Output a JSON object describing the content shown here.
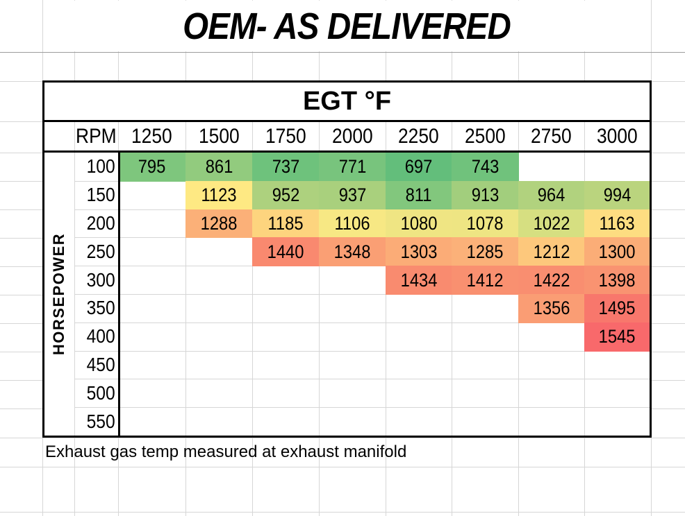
{
  "sheet": {
    "title": "OEM- AS DELIVERED",
    "footnote": "Exhaust gas temp measured at exhaust manifold"
  },
  "chart_data": {
    "type": "heatmap",
    "title": "OEM- AS DELIVERED",
    "panel_header": "EGT °F",
    "xlabel": "RPM",
    "ylabel": "HORSEPOWER",
    "x": [
      1250,
      1500,
      1750,
      2000,
      2250,
      2500,
      2750,
      3000
    ],
    "y": [
      100,
      150,
      200,
      250,
      300,
      350,
      400,
      450,
      500,
      550
    ],
    "values": [
      [
        795,
        861,
        737,
        771,
        697,
        743,
        null,
        null
      ],
      [
        null,
        1123,
        952,
        937,
        811,
        913,
        964,
        994
      ],
      [
        null,
        1288,
        1185,
        1106,
        1080,
        1078,
        1022,
        1163
      ],
      [
        null,
        null,
        1440,
        1348,
        1303,
        1285,
        1212,
        1300
      ],
      [
        null,
        null,
        null,
        null,
        1434,
        1412,
        1422,
        1398
      ],
      [
        null,
        null,
        null,
        null,
        null,
        null,
        1356,
        1495
      ],
      [
        null,
        null,
        null,
        null,
        null,
        null,
        null,
        1545
      ],
      [
        null,
        null,
        null,
        null,
        null,
        null,
        null,
        null
      ],
      [
        null,
        null,
        null,
        null,
        null,
        null,
        null,
        null
      ],
      [
        null,
        null,
        null,
        null,
        null,
        null,
        null,
        null
      ]
    ],
    "colors": [
      [
        "#7EC67D",
        "#92CB7E",
        "#6EC27C",
        "#78C47D",
        "#63BE7B",
        "#70C27C",
        null,
        null
      ],
      [
        null,
        "#FEE983",
        "#ADD17E",
        "#A9D07D",
        "#82C77D",
        "#A2CE7D",
        "#B1D27E",
        "#BAD47E"
      ],
      [
        null,
        "#FBB078",
        "#FDD47E",
        "#F7E884",
        "#EFE583",
        "#EEE583",
        "#D6DF81",
        "#FDDD81"
      ],
      [
        null,
        null,
        "#F9896F",
        "#FA9F74",
        "#FBAC77",
        "#FBB179",
        "#FDC87C",
        "#FBAD77"
      ],
      [
        null,
        null,
        null,
        null,
        "#F98B6F",
        "#F99070",
        "#F98E70",
        "#F99371"
      ],
      [
        null,
        null,
        null,
        null,
        null,
        null,
        "#FA9D74",
        "#F8776C"
      ],
      [
        null,
        null,
        null,
        null,
        null,
        null,
        null,
        "#F8696B"
      ],
      [
        null,
        null,
        null,
        null,
        null,
        null,
        null,
        null
      ],
      [
        null,
        null,
        null,
        null,
        null,
        null,
        null,
        null
      ],
      [
        null,
        null,
        null,
        null,
        null,
        null,
        null,
        null
      ]
    ],
    "color_scale": {
      "style": "excel-3-color",
      "min": {
        "value": 697,
        "color": "#63BE7B"
      },
      "mid": {
        "value": 1123,
        "color": "#FFEB84"
      },
      "max": {
        "value": 1545,
        "color": "#F8696B"
      }
    },
    "annotation": "Exhaust gas temp measured at exhaust manifold",
    "grid": true,
    "value_unit": "°F",
    "legend_position": "none"
  }
}
